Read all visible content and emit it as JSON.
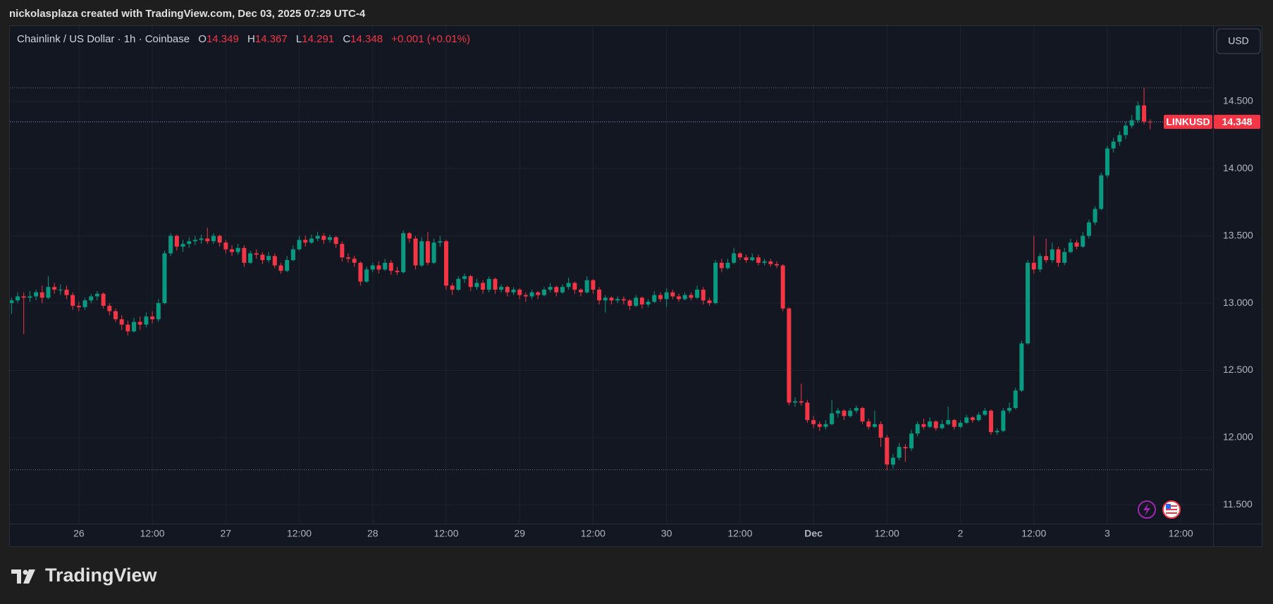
{
  "header": "nickolasplaza created with TradingView.com, Dec 03, 2025 07:29 UTC-4",
  "brand": "TradingView",
  "chart_data": {
    "type": "candlestick",
    "legend": {
      "name": "Chainlink / US Dollar · 1h · Coinbase",
      "o": "O",
      "h": "H",
      "l": "L",
      "c": "C",
      "change": "+0.001 (+0.01%)"
    },
    "currency": "USD",
    "symbol": "LINKUSD",
    "up_color": "#089981",
    "down_color": "#f23645",
    "grid": true,
    "ylim": [
      11.36,
      15.06
    ],
    "yticks": [
      {
        "value": 11.5,
        "label": "11.500"
      },
      {
        "value": 12,
        "label": "12.000"
      },
      {
        "value": 12.5,
        "label": "12.500"
      },
      {
        "value": 13,
        "label": "13.000"
      },
      {
        "value": 13.5,
        "label": "13.500"
      },
      {
        "value": 14,
        "label": "14.000"
      },
      {
        "value": 14.5,
        "label": "14.500"
      }
    ],
    "categories": [
      null,
      null,
      null,
      null,
      null,
      null,
      null,
      null,
      null,
      null,
      null,
      "26",
      null,
      null,
      null,
      null,
      null,
      null,
      null,
      null,
      null,
      null,
      null,
      "12:00",
      null,
      null,
      null,
      null,
      null,
      null,
      null,
      null,
      null,
      null,
      null,
      "27",
      null,
      null,
      null,
      null,
      null,
      null,
      null,
      null,
      null,
      null,
      null,
      "12:00",
      null,
      null,
      null,
      null,
      null,
      null,
      null,
      null,
      null,
      null,
      null,
      "28",
      null,
      null,
      null,
      null,
      null,
      null,
      null,
      null,
      null,
      null,
      null,
      "12:00",
      null,
      null,
      null,
      null,
      null,
      null,
      null,
      null,
      null,
      null,
      null,
      "29",
      null,
      null,
      null,
      null,
      null,
      null,
      null,
      null,
      null,
      null,
      null,
      "12:00",
      null,
      null,
      null,
      null,
      null,
      null,
      null,
      null,
      null,
      null,
      null,
      "30",
      null,
      null,
      null,
      null,
      null,
      null,
      null,
      null,
      null,
      null,
      null,
      "12:00",
      null,
      null,
      null,
      null,
      null,
      null,
      null,
      null,
      null,
      null,
      null,
      "Dec",
      null,
      null,
      null,
      null,
      null,
      null,
      null,
      null,
      null,
      null,
      null,
      "12:00",
      null,
      null,
      null,
      null,
      null,
      null,
      null,
      null,
      null,
      null,
      null,
      "2",
      null,
      null,
      null,
      null,
      null,
      null,
      null,
      null,
      null,
      null,
      null,
      "12:00",
      null,
      null,
      null,
      null,
      null,
      null,
      null,
      null,
      null,
      null,
      null,
      "3",
      null,
      null,
      null,
      null,
      null,
      null,
      null,
      null,
      null,
      null,
      null,
      "12:00"
    ],
    "values": [
      [
        13.0,
        13.04,
        12.92,
        13.02
      ],
      [
        13.02,
        13.08,
        13.0,
        13.05
      ],
      [
        13.05,
        13.08,
        12.77,
        13.04
      ],
      [
        13.04,
        13.09,
        13.01,
        13.05
      ],
      [
        13.05,
        13.1,
        13.02,
        13.08
      ],
      [
        13.08,
        13.13,
        13.0,
        13.04
      ],
      [
        13.04,
        13.2,
        13.03,
        13.12
      ],
      [
        13.12,
        13.15,
        13.07,
        13.1
      ],
      [
        13.1,
        13.14,
        13.06,
        13.1
      ],
      [
        13.1,
        13.13,
        13.03,
        13.06
      ],
      [
        13.06,
        13.08,
        12.95,
        12.98
      ],
      [
        12.98,
        13.01,
        12.94,
        12.97
      ],
      [
        12.97,
        13.04,
        12.95,
        13.02
      ],
      [
        13.02,
        13.07,
        13.0,
        13.05
      ],
      [
        13.05,
        13.09,
        13.02,
        13.07
      ],
      [
        13.07,
        13.08,
        12.96,
        12.98
      ],
      [
        12.98,
        13.0,
        12.91,
        12.94
      ],
      [
        12.94,
        12.96,
        12.86,
        12.88
      ],
      [
        12.88,
        12.91,
        12.8,
        12.84
      ],
      [
        12.84,
        12.87,
        12.76,
        12.79
      ],
      [
        12.79,
        12.89,
        12.78,
        12.86
      ],
      [
        12.86,
        12.9,
        12.8,
        12.84
      ],
      [
        12.84,
        12.93,
        12.82,
        12.9
      ],
      [
        12.9,
        12.94,
        12.85,
        12.88
      ],
      [
        12.88,
        13.03,
        12.86,
        13.0
      ],
      [
        13.0,
        13.39,
        12.99,
        13.37
      ],
      [
        13.37,
        13.52,
        13.35,
        13.5
      ],
      [
        13.5,
        13.51,
        13.39,
        13.42
      ],
      [
        13.42,
        13.47,
        13.38,
        13.44
      ],
      [
        13.44,
        13.49,
        13.41,
        13.46
      ],
      [
        13.46,
        13.5,
        13.43,
        13.47
      ],
      [
        13.47,
        13.51,
        13.44,
        13.48
      ],
      [
        13.48,
        13.56,
        13.44,
        13.46
      ],
      [
        13.46,
        13.52,
        13.44,
        13.5
      ],
      [
        13.5,
        13.51,
        13.42,
        13.45
      ],
      [
        13.45,
        13.47,
        13.37,
        13.4
      ],
      [
        13.4,
        13.43,
        13.35,
        13.38
      ],
      [
        13.38,
        13.44,
        13.36,
        13.41
      ],
      [
        13.41,
        13.43,
        13.27,
        13.3
      ],
      [
        13.3,
        13.39,
        13.29,
        13.37
      ],
      [
        13.37,
        13.4,
        13.33,
        13.36
      ],
      [
        13.36,
        13.38,
        13.29,
        13.32
      ],
      [
        13.32,
        13.38,
        13.3,
        13.35
      ],
      [
        13.35,
        13.37,
        13.26,
        13.28
      ],
      [
        13.28,
        13.3,
        13.22,
        13.24
      ],
      [
        13.24,
        13.35,
        13.23,
        13.32
      ],
      [
        13.32,
        13.43,
        13.31,
        13.4
      ],
      [
        13.4,
        13.5,
        13.39,
        13.47
      ],
      [
        13.47,
        13.5,
        13.42,
        13.45
      ],
      [
        13.45,
        13.51,
        13.44,
        13.48
      ],
      [
        13.48,
        13.53,
        13.46,
        13.5
      ],
      [
        13.5,
        13.52,
        13.44,
        13.47
      ],
      [
        13.47,
        13.51,
        13.45,
        13.49
      ],
      [
        13.49,
        13.5,
        13.41,
        13.44
      ],
      [
        13.44,
        13.46,
        13.31,
        13.34
      ],
      [
        13.34,
        13.37,
        13.3,
        13.33
      ],
      [
        13.33,
        13.35,
        13.27,
        13.3
      ],
      [
        13.3,
        13.31,
        13.13,
        13.16
      ],
      [
        13.16,
        13.27,
        13.15,
        13.25
      ],
      [
        13.25,
        13.3,
        13.23,
        13.28
      ],
      [
        13.28,
        13.31,
        13.22,
        13.25
      ],
      [
        13.25,
        13.33,
        13.24,
        13.3
      ],
      [
        13.3,
        13.32,
        13.21,
        13.24
      ],
      [
        13.24,
        13.27,
        13.21,
        13.23
      ],
      [
        13.23,
        13.54,
        13.22,
        13.52
      ],
      [
        13.52,
        13.53,
        13.45,
        13.48
      ],
      [
        13.48,
        13.5,
        13.25,
        13.28
      ],
      [
        13.28,
        13.49,
        13.27,
        13.46
      ],
      [
        13.46,
        13.53,
        13.28,
        13.3
      ],
      [
        13.3,
        13.48,
        13.29,
        13.45
      ],
      [
        13.45,
        13.5,
        13.42,
        13.46
      ],
      [
        13.46,
        13.47,
        13.1,
        13.13
      ],
      [
        13.13,
        13.15,
        13.06,
        13.1
      ],
      [
        13.1,
        13.2,
        13.09,
        13.18
      ],
      [
        13.18,
        13.22,
        13.15,
        13.2
      ],
      [
        13.2,
        13.21,
        13.09,
        13.12
      ],
      [
        13.12,
        13.18,
        13.1,
        13.15
      ],
      [
        13.15,
        13.17,
        13.07,
        13.1
      ],
      [
        13.1,
        13.2,
        13.08,
        13.18
      ],
      [
        13.18,
        13.19,
        13.07,
        13.1
      ],
      [
        13.1,
        13.14,
        13.08,
        13.12
      ],
      [
        13.12,
        13.13,
        13.05,
        13.08
      ],
      [
        13.08,
        13.12,
        13.06,
        13.1
      ],
      [
        13.1,
        13.11,
        13.03,
        13.06
      ],
      [
        13.06,
        13.08,
        13.01,
        13.05
      ],
      [
        13.05,
        13.1,
        13.03,
        13.08
      ],
      [
        13.08,
        13.09,
        13.03,
        13.06
      ],
      [
        13.06,
        13.12,
        13.05,
        13.1
      ],
      [
        13.1,
        13.15,
        13.08,
        13.12
      ],
      [
        13.12,
        13.13,
        13.05,
        13.08
      ],
      [
        13.08,
        13.14,
        13.07,
        13.12
      ],
      [
        13.12,
        13.19,
        13.1,
        13.15
      ],
      [
        13.15,
        13.16,
        13.07,
        13.1
      ],
      [
        13.1,
        13.11,
        13.05,
        13.08
      ],
      [
        13.08,
        13.2,
        13.07,
        13.17
      ],
      [
        13.17,
        13.18,
        13.07,
        13.1
      ],
      [
        13.1,
        13.12,
        12.99,
        13.02
      ],
      [
        13.02,
        13.06,
        12.93,
        13.04
      ],
      [
        13.04,
        13.05,
        12.99,
        13.02
      ],
      [
        13.02,
        13.05,
        13.0,
        13.03
      ],
      [
        13.03,
        13.05,
        12.99,
        13.02
      ],
      [
        13.02,
        13.03,
        12.95,
        12.98
      ],
      [
        12.98,
        13.06,
        12.97,
        13.04
      ],
      [
        13.04,
        13.05,
        12.96,
        12.99
      ],
      [
        12.99,
        13.03,
        12.97,
        13.01
      ],
      [
        13.01,
        13.09,
        13.0,
        13.06
      ],
      [
        13.06,
        13.08,
        13.01,
        13.03
      ],
      [
        13.03,
        13.11,
        12.97,
        13.08
      ],
      [
        13.08,
        13.1,
        13.03,
        13.05
      ],
      [
        13.05,
        13.07,
        13.01,
        13.03
      ],
      [
        13.03,
        13.08,
        13.02,
        13.06
      ],
      [
        13.06,
        13.08,
        13.02,
        13.04
      ],
      [
        13.04,
        13.13,
        13.03,
        13.1
      ],
      [
        13.1,
        13.12,
        12.99,
        13.02
      ],
      [
        13.02,
        13.04,
        12.98,
        13.0
      ],
      [
        13.0,
        13.32,
        12.99,
        13.3
      ],
      [
        13.3,
        13.33,
        13.23,
        13.26
      ],
      [
        13.26,
        13.33,
        13.25,
        13.3
      ],
      [
        13.3,
        13.41,
        13.29,
        13.37
      ],
      [
        13.37,
        13.38,
        13.32,
        13.34
      ],
      [
        13.34,
        13.36,
        13.3,
        13.32
      ],
      [
        13.32,
        13.37,
        13.31,
        13.34
      ],
      [
        13.34,
        13.36,
        13.28,
        13.3
      ],
      [
        13.3,
        13.33,
        13.28,
        13.31
      ],
      [
        13.31,
        13.33,
        13.27,
        13.29
      ],
      [
        13.29,
        13.31,
        13.26,
        13.28
      ],
      [
        13.28,
        13.29,
        12.94,
        12.96
      ],
      [
        12.96,
        12.97,
        12.24,
        12.26
      ],
      [
        12.26,
        12.3,
        12.23,
        12.27
      ],
      [
        12.27,
        12.4,
        12.24,
        12.26
      ],
      [
        12.26,
        12.28,
        12.11,
        12.13
      ],
      [
        12.13,
        12.16,
        12.07,
        12.1
      ],
      [
        12.1,
        12.12,
        12.05,
        12.08
      ],
      [
        12.08,
        12.13,
        12.06,
        12.1
      ],
      [
        12.1,
        12.28,
        12.09,
        12.18
      ],
      [
        12.18,
        12.22,
        12.15,
        12.2
      ],
      [
        12.2,
        12.21,
        12.13,
        12.16
      ],
      [
        12.16,
        12.22,
        12.15,
        12.2
      ],
      [
        12.2,
        12.24,
        12.18,
        12.22
      ],
      [
        12.22,
        12.23,
        12.1,
        12.12
      ],
      [
        12.12,
        12.14,
        12.06,
        12.08
      ],
      [
        12.08,
        12.2,
        12.07,
        12.1
      ],
      [
        12.1,
        12.12,
        11.93,
        12.0
      ],
      [
        12.0,
        12.02,
        11.76,
        11.8
      ],
      [
        11.8,
        11.88,
        11.77,
        11.85
      ],
      [
        11.85,
        11.96,
        11.83,
        11.93
      ],
      [
        11.93,
        11.95,
        11.82,
        11.92
      ],
      [
        11.92,
        12.06,
        11.9,
        12.03
      ],
      [
        12.03,
        12.12,
        12.01,
        12.1
      ],
      [
        12.1,
        12.14,
        12.06,
        12.08
      ],
      [
        12.08,
        12.15,
        12.07,
        12.12
      ],
      [
        12.12,
        12.13,
        12.05,
        12.07
      ],
      [
        12.07,
        12.13,
        12.06,
        12.1
      ],
      [
        12.1,
        12.23,
        12.09,
        12.13
      ],
      [
        12.13,
        12.14,
        12.06,
        12.08
      ],
      [
        12.08,
        12.13,
        12.07,
        12.11
      ],
      [
        12.11,
        12.17,
        12.1,
        12.15
      ],
      [
        12.15,
        12.16,
        12.11,
        12.13
      ],
      [
        12.13,
        12.19,
        12.12,
        12.17
      ],
      [
        12.17,
        12.22,
        12.16,
        12.2
      ],
      [
        12.2,
        12.21,
        12.02,
        12.04
      ],
      [
        12.04,
        12.07,
        12.02,
        12.05
      ],
      [
        12.05,
        12.22,
        12.04,
        12.2
      ],
      [
        12.2,
        12.26,
        12.18,
        12.22
      ],
      [
        12.22,
        12.37,
        12.21,
        12.35
      ],
      [
        12.35,
        12.72,
        12.34,
        12.7
      ],
      [
        12.7,
        13.32,
        12.69,
        13.3
      ],
      [
        13.3,
        13.5,
        13.22,
        13.25
      ],
      [
        13.25,
        13.37,
        13.23,
        13.35
      ],
      [
        13.35,
        13.48,
        13.3,
        13.32
      ],
      [
        13.32,
        13.45,
        13.3,
        13.4
      ],
      [
        13.4,
        13.42,
        13.27,
        13.3
      ],
      [
        13.3,
        13.41,
        13.28,
        13.38
      ],
      [
        13.38,
        13.48,
        13.37,
        13.45
      ],
      [
        13.45,
        13.47,
        13.4,
        13.42
      ],
      [
        13.42,
        13.53,
        13.41,
        13.5
      ],
      [
        13.5,
        13.62,
        13.48,
        13.6
      ],
      [
        13.6,
        13.72,
        13.58,
        13.7
      ],
      [
        13.7,
        13.97,
        13.69,
        13.95
      ],
      [
        13.95,
        14.17,
        13.93,
        14.15
      ],
      [
        14.15,
        14.23,
        14.12,
        14.2
      ],
      [
        14.2,
        14.28,
        14.17,
        14.25
      ],
      [
        14.25,
        14.35,
        14.22,
        14.32
      ],
      [
        14.32,
        14.4,
        14.3,
        14.36
      ],
      [
        14.36,
        14.5,
        14.34,
        14.47
      ],
      [
        14.47,
        14.6,
        14.33,
        14.35
      ],
      [
        14.349,
        14.367,
        14.291,
        14.348
      ],
      null,
      null,
      null,
      null,
      null
    ]
  }
}
